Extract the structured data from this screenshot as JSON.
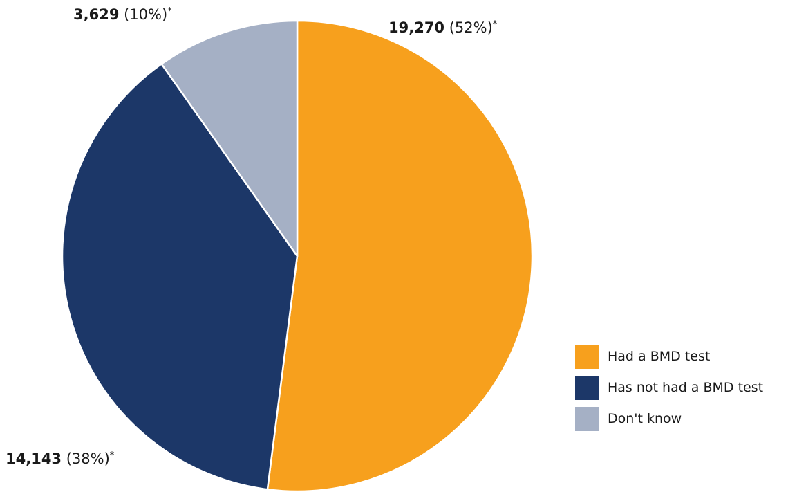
{
  "chart_data": {
    "type": "pie",
    "title": "",
    "unit": "",
    "slices": [
      {
        "name": "Had a BMD test",
        "value": 19270,
        "value_label": "19,270",
        "percent_label": "(52%)",
        "marker": "*",
        "color": "#F7A01D"
      },
      {
        "name": "Has not had a BMD test",
        "value": 14143,
        "value_label": "14,143",
        "percent_label": "(38%)",
        "marker": "*",
        "color": "#1C3768"
      },
      {
        "name": "Don't know",
        "value": 3629,
        "value_label": "3,629",
        "percent_label": "(10%)",
        "marker": "*",
        "color": "#A5B0C5"
      }
    ],
    "start_angle_deg": 0,
    "direction": "clockwise",
    "legend_position": "right-bottom"
  }
}
